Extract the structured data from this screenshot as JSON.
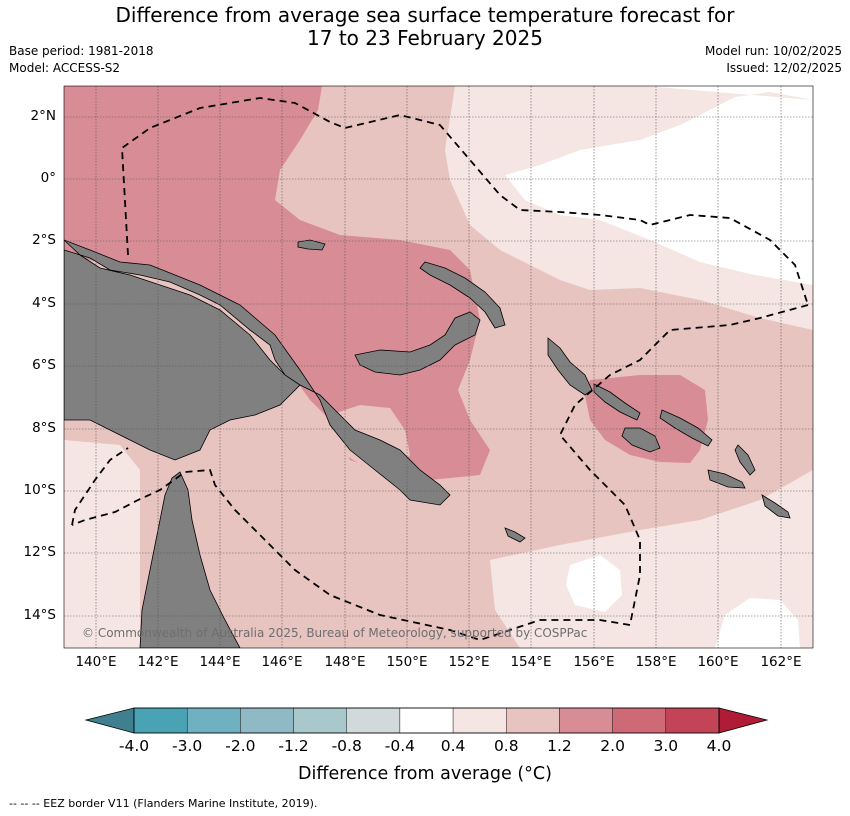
{
  "title": {
    "line1": "Difference from average sea surface temperature forecast for",
    "line2": "17 to 23 February 2025"
  },
  "meta_left": {
    "base_period": "Base period: 1981-2018",
    "model": "Model: ACCESS-S2"
  },
  "meta_right": {
    "model_run": "Model run: 10/02/2025",
    "issued": "Issued: 12/02/2025"
  },
  "map": {
    "lat_ticks": [
      "2°N",
      "0°",
      "2°S",
      "4°S",
      "6°S",
      "8°S",
      "10°S",
      "12°S",
      "14°S"
    ],
    "lon_ticks": [
      "140°E",
      "142°E",
      "144°E",
      "146°E",
      "148°E",
      "150°E",
      "152°E",
      "154°E",
      "156°E",
      "158°E",
      "160°E",
      "162°E"
    ],
    "copyright": "© Commonwealth of Australia 2025, Bureau of Meteorology, supported by COSPPac",
    "land_color": "#808080"
  },
  "colorbar": {
    "colors": [
      "#3e808f",
      "#4aa3b5",
      "#6fb1c1",
      "#8fb9c4",
      "#a9c8cc",
      "#d2d9db",
      "#ffffff",
      "#f5e6e4",
      "#e8c4c0",
      "#d88d96",
      "#cd6a76",
      "#c24456",
      "#b01c36"
    ],
    "labels": [
      "-4.0",
      "-3.0",
      "-2.0",
      "-1.2",
      "-0.8",
      "-0.4",
      "0.4",
      "0.8",
      "1.2",
      "2.0",
      "3.0",
      "4.0"
    ],
    "title": "Difference from average (°C)"
  },
  "footer": "--  --  -- EEZ border V11 (Flanders Marine Institute, 2019)."
}
